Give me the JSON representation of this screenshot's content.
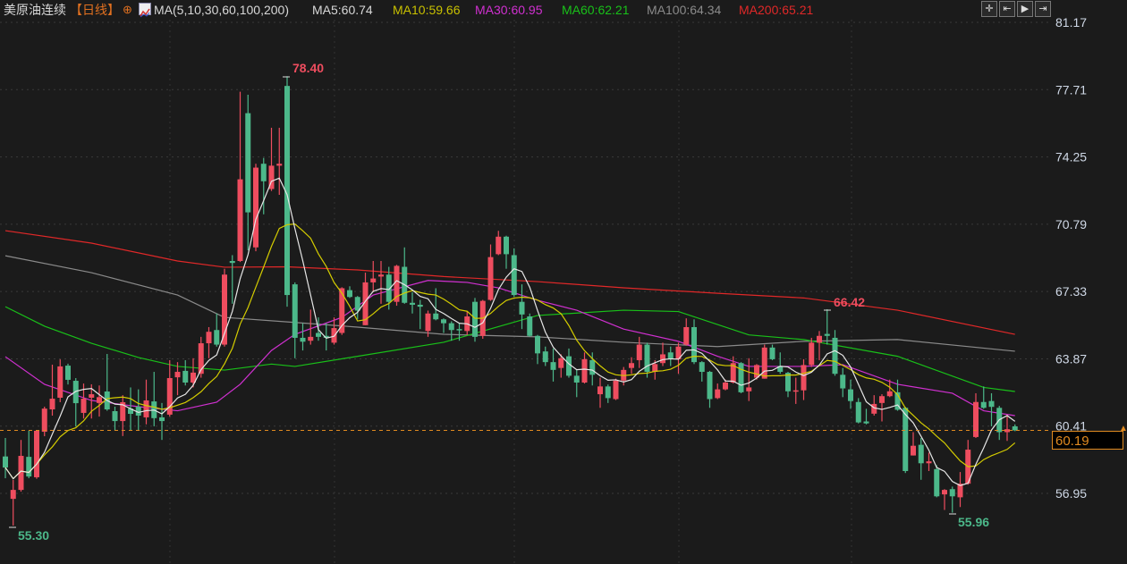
{
  "header": {
    "title": "美原油连续",
    "period": "【日线】",
    "ma_params": "MA(5,10,30,60,100,200)",
    "ma5": "MA5:60.74",
    "ma10": "MA10:59.66",
    "ma30": "MA30:60.95",
    "ma60": "MA60:62.21",
    "ma100": "MA100:64.34",
    "ma200": "MA200:65.21"
  },
  "toolbar": [
    "crosshair-icon",
    "zoom-in-icon",
    "play-icon",
    "exit-icon"
  ],
  "colors": {
    "up": "#ee4d5f",
    "down": "#4cb88a",
    "ma5": "#e6e6e6",
    "ma10": "#d4cc00",
    "ma30": "#d030d0",
    "ma60": "#19c019",
    "ma100": "#8a8a8a",
    "ma200": "#e02828",
    "price": "#e08a20"
  },
  "chart_data": {
    "type": "candlestick",
    "yticks": [
      "81.17",
      "77.71",
      "74.25",
      "70.79",
      "67.33",
      "63.87",
      "60.41",
      "56.95"
    ],
    "ylim": [
      54.6,
      81.17
    ],
    "grid": true,
    "current_price": "60.19",
    "annotations": {
      "max": "78.40",
      "local_high": "66.42",
      "min": "55.30",
      "local_low": "55.96"
    },
    "candles_ohlc": [
      [
        58.85,
        59.8,
        57.73,
        58.28
      ],
      [
        56.67,
        57.64,
        55.3,
        57.13
      ],
      [
        57.13,
        59.7,
        57.04,
        58.88
      ],
      [
        58.83,
        60.17,
        57.73,
        57.82
      ],
      [
        57.78,
        60.2,
        57.7,
        60.17
      ],
      [
        60.12,
        61.41,
        59.89,
        61.31
      ],
      [
        61.27,
        63.57,
        60.95,
        61.82
      ],
      [
        61.87,
        63.84,
        61.64,
        63.48
      ],
      [
        63.52,
        63.62,
        62.55,
        62.79
      ],
      [
        62.74,
        62.88,
        60.39,
        61.59
      ],
      [
        61.09,
        62.6,
        60.8,
        61.82
      ],
      [
        61.87,
        62.56,
        60.8,
        62.05
      ],
      [
        61.6,
        62.5,
        60.9,
        61.9
      ],
      [
        62.19,
        64.12,
        61.2,
        61.27
      ],
      [
        61.18,
        61.41,
        60.17,
        60.67
      ],
      [
        60.67,
        62.0,
        59.9,
        61.64
      ],
      [
        61.31,
        62.4,
        60.2,
        61.04
      ],
      [
        61.41,
        62.3,
        60.2,
        60.95
      ],
      [
        60.86,
        62.8,
        60.5,
        61.73
      ],
      [
        61.68,
        63.2,
        60.4,
        60.82
      ],
      [
        60.86,
        61.6,
        59.7,
        60.67
      ],
      [
        61.0,
        63.8,
        60.9,
        62.88
      ],
      [
        62.92,
        63.7,
        62.0,
        63.2
      ],
      [
        63.25,
        63.8,
        62.5,
        62.65
      ],
      [
        62.65,
        63.9,
        62.4,
        63.16
      ],
      [
        63.1,
        65.0,
        62.9,
        64.67
      ],
      [
        64.67,
        65.5,
        63.9,
        65.26
      ],
      [
        65.35,
        66.2,
        64.5,
        64.6
      ],
      [
        64.6,
        68.5,
        64.5,
        68.2
      ],
      [
        68.9,
        69.2,
        66.7,
        68.8
      ],
      [
        68.9,
        77.6,
        68.85,
        73.1
      ],
      [
        76.5,
        77.45,
        69.45,
        71.4
      ],
      [
        69.6,
        73.9,
        69.4,
        73.7
      ],
      [
        73.9,
        74.2,
        71.3,
        73.0
      ],
      [
        72.6,
        75.75,
        72.5,
        73.8
      ],
      [
        73.8,
        75.75,
        72.3,
        73.9
      ],
      [
        77.9,
        78.4,
        66.55,
        67.15
      ],
      [
        67.7,
        67.8,
        63.9,
        64.95
      ],
      [
        64.95,
        65.7,
        64.3,
        64.75
      ],
      [
        64.8,
        66.4,
        64.6,
        65.0
      ],
      [
        65.2,
        66.0,
        64.8,
        65.0
      ],
      [
        65.05,
        65.7,
        64.3,
        64.95
      ],
      [
        64.7,
        66.0,
        64.6,
        65.45
      ],
      [
        65.2,
        67.55,
        65.1,
        67.5
      ],
      [
        67.4,
        67.6,
        67.0,
        67.05
      ],
      [
        67.05,
        67.1,
        65.9,
        66.35
      ],
      [
        65.6,
        68.3,
        65.6,
        67.8
      ],
      [
        67.8,
        68.9,
        67.3,
        68.0
      ],
      [
        68.1,
        68.9,
        66.7,
        68.2
      ],
      [
        68.2,
        68.6,
        66.4,
        66.8
      ],
      [
        66.8,
        68.7,
        66.6,
        68.65
      ],
      [
        68.6,
        69.6,
        66.7,
        66.75
      ],
      [
        66.75,
        67.3,
        66.2,
        66.65
      ],
      [
        66.65,
        66.9,
        65.4,
        66.55
      ],
      [
        65.3,
        66.35,
        65.0,
        66.2
      ],
      [
        66.2,
        67.5,
        65.85,
        65.9
      ],
      [
        65.9,
        65.95,
        65.2,
        65.7
      ],
      [
        65.7,
        65.8,
        64.8,
        65.35
      ],
      [
        65.4,
        65.7,
        64.8,
        65.35
      ],
      [
        65.3,
        66.3,
        65.1,
        66.05
      ],
      [
        66.8,
        67.0,
        64.75,
        65.0
      ],
      [
        65.05,
        66.9,
        64.9,
        66.85
      ],
      [
        66.9,
        69.75,
        66.85,
        69.1
      ],
      [
        69.25,
        70.45,
        69.2,
        70.15
      ],
      [
        70.15,
        70.2,
        68.5,
        69.25
      ],
      [
        69.2,
        69.55,
        67.05,
        67.15
      ],
      [
        66.8,
        67.7,
        65.4,
        66.15
      ],
      [
        66.05,
        66.2,
        65.0,
        65.05
      ],
      [
        65.05,
        65.1,
        63.6,
        64.15
      ],
      [
        64.25,
        64.5,
        63.5,
        63.7
      ],
      [
        63.7,
        64.4,
        62.7,
        63.3
      ],
      [
        63.4,
        64.1,
        62.9,
        63.9
      ],
      [
        64.0,
        64.4,
        62.9,
        63.0
      ],
      [
        63.0,
        63.3,
        61.9,
        62.65
      ],
      [
        62.65,
        64.2,
        62.6,
        63.85
      ],
      [
        63.8,
        64.2,
        62.5,
        63.05
      ],
      [
        62.05,
        62.9,
        61.35,
        62.45
      ],
      [
        62.45,
        62.55,
        61.6,
        61.85
      ],
      [
        61.8,
        62.85,
        61.75,
        62.75
      ],
      [
        62.75,
        63.45,
        62.5,
        63.3
      ],
      [
        63.4,
        63.95,
        63.1,
        63.65
      ],
      [
        63.8,
        65.0,
        63.4,
        64.6
      ],
      [
        64.6,
        64.7,
        62.9,
        63.2
      ],
      [
        63.2,
        63.8,
        62.8,
        63.6
      ],
      [
        63.65,
        64.7,
        63.5,
        64.1
      ],
      [
        64.2,
        64.5,
        63.5,
        63.85
      ],
      [
        63.85,
        64.7,
        63.1,
        64.5
      ],
      [
        64.6,
        65.95,
        64.55,
        65.5
      ],
      [
        65.5,
        65.9,
        63.6,
        63.7
      ],
      [
        63.7,
        63.75,
        62.7,
        63.2
      ],
      [
        63.2,
        63.25,
        61.35,
        61.8
      ],
      [
        61.85,
        62.6,
        61.8,
        62.3
      ],
      [
        62.3,
        62.8,
        62.25,
        62.65
      ],
      [
        62.65,
        64.0,
        62.6,
        63.65
      ],
      [
        63.65,
        63.7,
        62.1,
        62.15
      ],
      [
        62.2,
        63.9,
        61.7,
        62.4
      ],
      [
        62.9,
        63.6,
        62.8,
        63.55
      ],
      [
        62.85,
        64.6,
        62.85,
        64.45
      ],
      [
        64.45,
        64.6,
        63.8,
        63.85
      ],
      [
        63.5,
        64.2,
        63.1,
        63.2
      ],
      [
        63.15,
        63.2,
        61.9,
        62.2
      ],
      [
        62.2,
        62.9,
        61.55,
        62.25
      ],
      [
        62.25,
        63.85,
        61.75,
        63.55
      ],
      [
        63.55,
        64.95,
        63.45,
        64.7
      ],
      [
        64.7,
        65.3,
        63.8,
        65.05
      ],
      [
        65.15,
        66.42,
        64.6,
        65.05
      ],
      [
        64.95,
        65.35,
        63.0,
        63.1
      ],
      [
        63.05,
        63.4,
        61.9,
        62.35
      ],
      [
        62.3,
        62.8,
        61.3,
        61.7
      ],
      [
        61.65,
        61.85,
        60.55,
        60.6
      ],
      [
        60.65,
        61.3,
        60.5,
        60.55
      ],
      [
        61.05,
        62.0,
        60.95,
        61.55
      ],
      [
        61.6,
        62.05,
        60.65,
        61.95
      ],
      [
        61.95,
        62.8,
        61.9,
        62.2
      ],
      [
        62.15,
        62.8,
        61.2,
        61.25
      ],
      [
        61.35,
        61.4,
        58.0,
        58.1
      ],
      [
        58.9,
        60.1,
        58.9,
        59.4
      ],
      [
        59.45,
        59.8,
        57.65,
        58.5
      ],
      [
        58.5,
        59.05,
        58.1,
        58.6
      ],
      [
        58.2,
        58.4,
        56.75,
        56.8
      ],
      [
        56.9,
        57.17,
        56.1,
        57.13
      ],
      [
        57.17,
        57.3,
        55.96,
        56.8
      ],
      [
        56.75,
        58.05,
        56.25,
        57.45
      ],
      [
        57.45,
        59.7,
        57.4,
        59.2
      ],
      [
        59.85,
        62.1,
        59.8,
        61.65
      ],
      [
        61.65,
        62.45,
        61.3,
        61.35
      ],
      [
        61.7,
        62.1,
        60.4,
        61.4
      ],
      [
        61.35,
        61.45,
        59.7,
        60.1
      ],
      [
        60.1,
        61.0,
        59.65,
        60.25
      ],
      [
        60.4,
        60.5,
        60.15,
        60.19
      ]
    ],
    "ma_series": {
      "ma30": [
        [
          1,
          63.98
        ],
        [
          6,
          62.56
        ],
        [
          12,
          61.73
        ],
        [
          18,
          61.41
        ],
        [
          23,
          61.2
        ],
        [
          28,
          61.64
        ],
        [
          31,
          62.56
        ],
        [
          35,
          64.3
        ],
        [
          38,
          65.13
        ],
        [
          44,
          66.0
        ],
        [
          48,
          67.15
        ],
        [
          55,
          67.9
        ],
        [
          60,
          67.8
        ],
        [
          64,
          67.52
        ],
        [
          69,
          66.88
        ],
        [
          74,
          66.37
        ],
        [
          80,
          65.4
        ],
        [
          87,
          64.77
        ],
        [
          92,
          64.0
        ],
        [
          96,
          63.48
        ],
        [
          103,
          63.48
        ],
        [
          108,
          63.57
        ],
        [
          115,
          62.56
        ],
        [
          122,
          62.1
        ],
        [
          126,
          61.2
        ],
        [
          130,
          60.95
        ]
      ],
      "ma60": [
        [
          1,
          66.55
        ],
        [
          6,
          65.55
        ],
        [
          12,
          64.67
        ],
        [
          18,
          63.94
        ],
        [
          23,
          63.48
        ],
        [
          29,
          63.29
        ],
        [
          35,
          63.6
        ],
        [
          38,
          63.48
        ],
        [
          46,
          64.0
        ],
        [
          57,
          64.72
        ],
        [
          69,
          66.1
        ],
        [
          80,
          66.37
        ],
        [
          87,
          66.3
        ],
        [
          96,
          65.1
        ],
        [
          103,
          64.86
        ],
        [
          115,
          64.0
        ],
        [
          126,
          62.4
        ],
        [
          130,
          62.19
        ]
      ],
      "ma100": [
        [
          1,
          69.17
        ],
        [
          12,
          68.3
        ],
        [
          23,
          67.15
        ],
        [
          29,
          66.0
        ],
        [
          37,
          65.77
        ],
        [
          46,
          65.5
        ],
        [
          57,
          65.13
        ],
        [
          69,
          65.0
        ],
        [
          80,
          64.72
        ],
        [
          92,
          64.5
        ],
        [
          103,
          64.77
        ],
        [
          115,
          64.86
        ],
        [
          130,
          64.26
        ]
      ],
      "ma200": [
        [
          1,
          70.46
        ],
        [
          12,
          69.82
        ],
        [
          23,
          68.9
        ],
        [
          29,
          68.58
        ],
        [
          37,
          68.6
        ],
        [
          46,
          68.44
        ],
        [
          57,
          68.1
        ],
        [
          69,
          67.84
        ],
        [
          80,
          67.52
        ],
        [
          92,
          67.24
        ],
        [
          103,
          67.0
        ],
        [
          115,
          66.37
        ],
        [
          130,
          65.13
        ]
      ]
    }
  }
}
